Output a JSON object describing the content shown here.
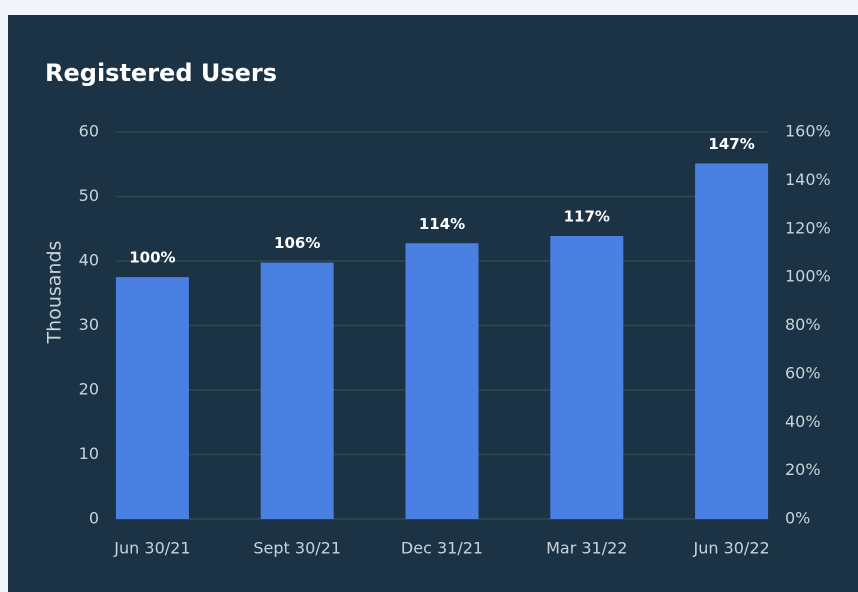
{
  "chart_data": {
    "type": "bar",
    "title": "Registered Users",
    "ylabel": "Thousands",
    "categories": [
      "Jun 30/21",
      "Sept 30/21",
      "Dec 31/21",
      "Mar 31/22",
      "Jun 30/22"
    ],
    "values": [
      100,
      106,
      114,
      117,
      147
    ],
    "value_labels": [
      "100%",
      "106%",
      "114%",
      "117%",
      "147%"
    ],
    "axis": "y2",
    "color": "#4a80e2",
    "ylim": [
      0,
      60
    ],
    "yticks": [
      0,
      10,
      20,
      30,
      40,
      50,
      60
    ],
    "y2lim": [
      0,
      160
    ],
    "y2ticks": [
      {
        "value": 0,
        "label": "0%"
      },
      {
        "value": 20,
        "label": "20%"
      },
      {
        "value": 40,
        "label": "40%"
      },
      {
        "value": 60,
        "label": "60%"
      },
      {
        "value": 80,
        "label": "80%"
      },
      {
        "value": 100,
        "label": "100%"
      },
      {
        "value": 120,
        "label": "120%"
      },
      {
        "value": 140,
        "label": "140%"
      },
      {
        "value": 160,
        "label": "160%"
      }
    ],
    "grid": true
  }
}
